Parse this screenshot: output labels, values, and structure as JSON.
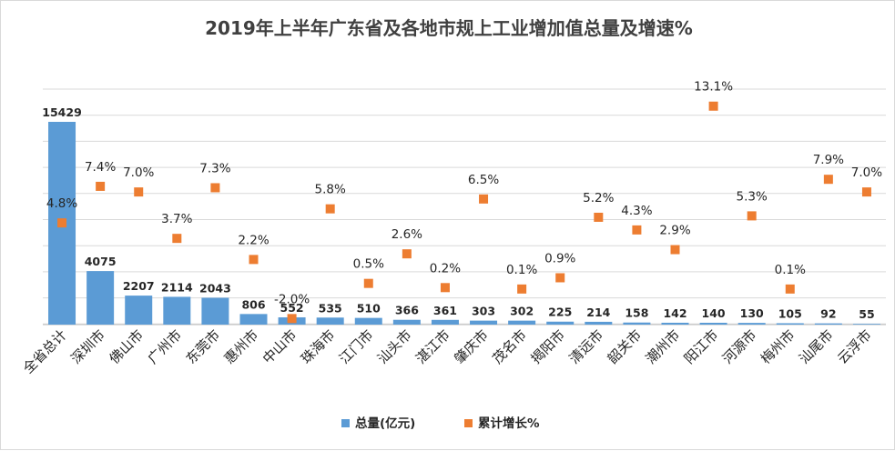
{
  "title": "2019年上半年广东省及各地市规上工业增加值总量及增速%",
  "legend": {
    "bar_name": "总量(亿元)",
    "marker_name": "累计增长%"
  },
  "colors": {
    "bar": "#5b9bd5",
    "marker": "#ed7d31",
    "grid": "#d9d9d9",
    "text": "#262626",
    "title": "#404040"
  },
  "chart_data": {
    "type": "bar",
    "title": "2019年上半年广东省及各地市规上工业增加值总量及增速%",
    "xlabel": "",
    "ylabel": "",
    "grid": true,
    "legend_position": "bottom",
    "categories": [
      "全省总计",
      "深圳市",
      "佛山市",
      "广州市",
      "东莞市",
      "惠州市",
      "中山市",
      "珠海市",
      "江门市",
      "汕头市",
      "湛江市",
      "肇庆市",
      "茂名市",
      "揭阳市",
      "清远市",
      "韶关市",
      "潮州市",
      "阳江市",
      "河源市",
      "梅州市",
      "汕尾市",
      "云浮市"
    ],
    "series": [
      {
        "name": "总量(亿元)",
        "type": "bar",
        "values": [
          15429,
          4075,
          2207,
          2114,
          2043,
          806,
          552,
          535,
          510,
          366,
          361,
          303,
          302,
          225,
          214,
          158,
          142,
          140,
          130,
          105,
          92,
          55
        ],
        "labels": [
          "15429",
          "4075",
          "2207",
          "2114",
          "2043",
          "806",
          "552",
          "535",
          "510",
          "366",
          "361",
          "303",
          "302",
          "225",
          "214",
          "158",
          "142",
          "140",
          "130",
          "105",
          "92",
          "55"
        ]
      },
      {
        "name": "累计增长%",
        "type": "scatter",
        "values": [
          4.8,
          7.4,
          7.0,
          3.7,
          7.3,
          2.2,
          -2.0,
          5.8,
          0.5,
          2.6,
          0.2,
          6.5,
          0.1,
          0.9,
          5.2,
          4.3,
          2.9,
          13.1,
          5.3,
          0.1,
          7.9,
          7.0
        ],
        "labels": [
          "4.8%",
          "7.4%",
          "7.0%",
          "3.7%",
          "7.3%",
          "2.2%",
          "-2.0%",
          "5.8%",
          "0.5%",
          "2.6%",
          "0.2%",
          "6.5%",
          "0.1%",
          "0.9%",
          "5.2%",
          "4.3%",
          "2.9%",
          "13.1%",
          "5.3%",
          "0.1%",
          "7.9%",
          "7.0%"
        ]
      }
    ]
  }
}
